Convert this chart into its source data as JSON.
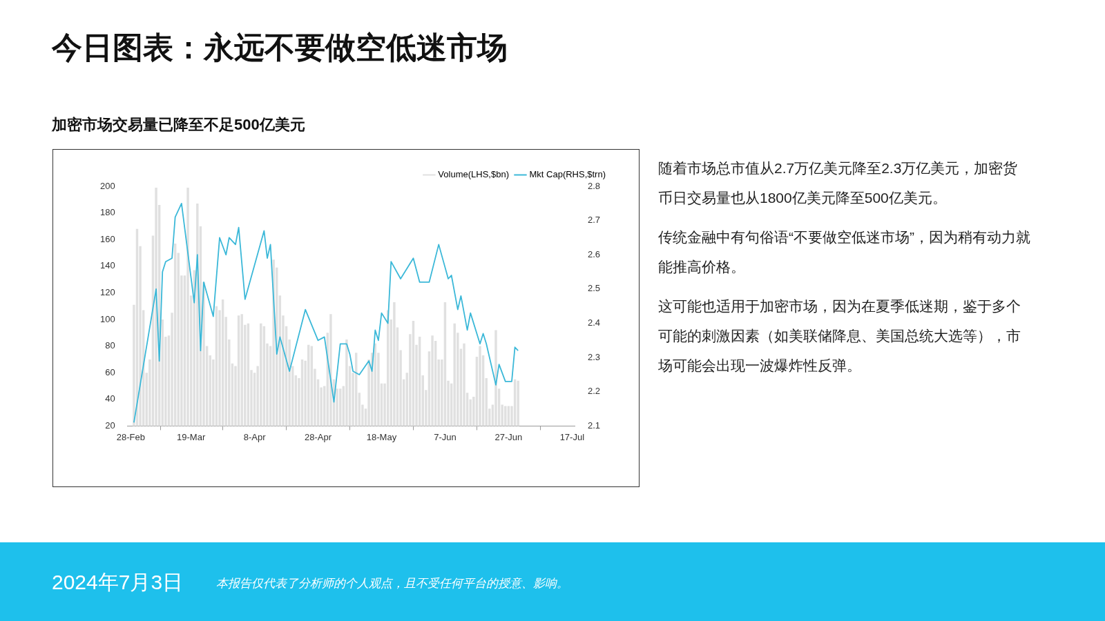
{
  "chart_data": {
    "type": "bar",
    "title": "今日图表：永远不要做空低迷市场",
    "subtitle": "加密市场交易量已降至不足500亿美元",
    "series": [
      {
        "name": "Volume(LHS,$bn)",
        "color": "#e0e0e0",
        "x": [
          "--03-01",
          "--03-02",
          "--03-03",
          "--03-04",
          "--03-05",
          "--03-06",
          "--03-07",
          "--03-08",
          "--03-09",
          "--03-10",
          "--03-11",
          "--03-12",
          "--03-13",
          "--03-14",
          "--03-15",
          "--03-16",
          "--03-17",
          "--03-18",
          "--03-19",
          "--03-20",
          "--03-21",
          "--03-22",
          "--03-23",
          "--03-24",
          "--03-25",
          "--03-26",
          "--03-27",
          "--03-28",
          "--03-29",
          "--03-30",
          "--03-31",
          "--04-01",
          "--04-02",
          "--04-03",
          "--04-04",
          "--04-05",
          "--04-06",
          "--04-07",
          "--04-08",
          "--04-09",
          "--04-10",
          "--04-11",
          "--04-12",
          "--04-13",
          "--04-14",
          "--04-15",
          "--04-16",
          "--04-17",
          "--04-18",
          "--04-19",
          "--04-20",
          "--04-21",
          "--04-22",
          "--04-23",
          "--04-24",
          "--04-25",
          "--04-26",
          "--04-27",
          "--04-28",
          "--04-29",
          "--04-30",
          "--05-01",
          "--05-02",
          "--05-03",
          "--05-04",
          "--05-05",
          "--05-06",
          "--05-07",
          "--05-08",
          "--05-09",
          "--05-10",
          "--05-11",
          "--05-12",
          "--05-13",
          "--05-14",
          "--05-15",
          "--05-16",
          "--05-17",
          "--05-18",
          "--05-19",
          "--05-20",
          "--05-21",
          "--05-22",
          "--05-23",
          "--05-24",
          "--05-25",
          "--05-26",
          "--05-27",
          "--05-28",
          "--05-29",
          "--05-30",
          "--05-31",
          "--06-01",
          "--06-02",
          "--06-03",
          "--06-04",
          "--06-05",
          "--06-06",
          "--06-07",
          "--06-08",
          "--06-09",
          "--06-10",
          "--06-11",
          "--06-12",
          "--06-13",
          "--06-14",
          "--06-15",
          "--06-16",
          "--06-17",
          "--06-18",
          "--06-19",
          "--06-20",
          "--06-21",
          "--06-22",
          "--06-23",
          "--06-24",
          "--06-25",
          "--06-26",
          "--06-27",
          "--06-28",
          "--06-29",
          "--06-30"
        ],
        "values": [
          111,
          168,
          155,
          107,
          60,
          70,
          163,
          199,
          186,
          100,
          87,
          88,
          105,
          157,
          150,
          133,
          133,
          199,
          118,
          137,
          187,
          170,
          128,
          80,
          73,
          70,
          110,
          107,
          115,
          102,
          85,
          67,
          65,
          103,
          104,
          96,
          97,
          62,
          60,
          65,
          97,
          95,
          82,
          80,
          145,
          139,
          118,
          103,
          95,
          85,
          65,
          58,
          56,
          70,
          69,
          81,
          80,
          63,
          55,
          49,
          50,
          90,
          104,
          55,
          48,
          48,
          50,
          85,
          65,
          60,
          75,
          45,
          36,
          33,
          70,
          75,
          82,
          75,
          52,
          52,
          107,
          100,
          113,
          94,
          77,
          55,
          60,
          89,
          99,
          81,
          87,
          58,
          47,
          76,
          88,
          84,
          70,
          70,
          113,
          54,
          52,
          97,
          90,
          78,
          82,
          45,
          40,
          42,
          72,
          80,
          73,
          56,
          33,
          36,
          92,
          48,
          36,
          35,
          35,
          35,
          55,
          54
        ]
      },
      {
        "name": "Mkt Cap(RHS,$trn)",
        "type": "line",
        "axis": "y2",
        "color": "#3bb8d8",
        "x": [
          "--03-01",
          "--03-08",
          "--03-09",
          "--03-10",
          "--03-11",
          "--03-13",
          "--03-14",
          "--03-16",
          "--03-20",
          "--03-21",
          "--03-22",
          "--03-23",
          "--03-26",
          "--03-28",
          "--03-30",
          "--03-31",
          "--04-02",
          "--04-03",
          "--04-05",
          "--04-11",
          "--04-12",
          "--04-13",
          "--04-15",
          "--04-16",
          "--04-19",
          "--04-24",
          "--04-28",
          "--04-30",
          "--05-03",
          "--05-05",
          "--05-07",
          "--05-08",
          "--05-09",
          "--05-11",
          "--05-14",
          "--05-15",
          "--05-16",
          "--05-17",
          "--05-18",
          "--05-20",
          "--05-21",
          "--05-24",
          "--05-28",
          "--05-30",
          "--06-02",
          "--06-05",
          "--06-08",
          "--06-09",
          "--06-11",
          "--06-12",
          "--06-14",
          "--06-15",
          "--06-18",
          "--06-19",
          "--06-20",
          "--06-23",
          "--06-24",
          "--06-26",
          "--06-28",
          "--06-29",
          "--06-30"
        ],
        "values": [
          2.11,
          2.5,
          2.29,
          2.55,
          2.58,
          2.59,
          2.71,
          2.75,
          2.46,
          2.6,
          2.32,
          2.52,
          2.42,
          2.65,
          2.6,
          2.65,
          2.63,
          2.68,
          2.47,
          2.67,
          2.59,
          2.63,
          2.31,
          2.36,
          2.26,
          2.44,
          2.35,
          2.36,
          2.17,
          2.34,
          2.34,
          2.31,
          2.26,
          2.25,
          2.29,
          2.26,
          2.38,
          2.35,
          2.43,
          2.4,
          2.58,
          2.53,
          2.59,
          2.52,
          2.52,
          2.63,
          2.53,
          2.54,
          2.44,
          2.48,
          2.38,
          2.43,
          2.34,
          2.37,
          2.34,
          2.22,
          2.28,
          2.23,
          2.23,
          2.33,
          2.32
        ]
      }
    ],
    "xlim": [
      "--02-27",
      "--07-18"
    ],
    "xticks": [
      {
        "value": "--02-28",
        "label": "28-Feb"
      },
      {
        "value": "--03-19",
        "label": "19-Mar"
      },
      {
        "value": "--04-08",
        "label": "8-Apr"
      },
      {
        "value": "--04-28",
        "label": "28-Apr"
      },
      {
        "value": "--05-18",
        "label": "18-May"
      },
      {
        "value": "--06-07",
        "label": "7-Jun"
      },
      {
        "value": "--06-27",
        "label": "27-Jun"
      },
      {
        "value": "--07-17",
        "label": "17-Jul"
      }
    ],
    "ylim": [
      20,
      200
    ],
    "yticks": [
      20,
      40,
      60,
      80,
      100,
      120,
      140,
      160,
      180,
      200
    ],
    "y2lim": [
      2.1,
      2.8
    ],
    "y2ticks": [
      2.1,
      2.2,
      2.3,
      2.4,
      2.5,
      2.6,
      2.7,
      2.8
    ],
    "grid": false,
    "legend": "top right",
    "marker": "none",
    "line_style": "solid",
    "annotations": [
      "随着市场总市值从2.7万亿美元降至2.3万亿美元，加密货币日交易量也从1800亿美元降至500亿美元。",
      "传统金融中有句俗语“不要做空低迷市场”，因为稍有动力就能推高价格。",
      "这可能也适用于加密市场，因为在夏季低迷期，鉴于多个可能的刺激因素（如美联储降息、美国总统大选等），市场可能会出现一波爆炸性反弹。",
      "2024年7月3日",
      "本报告仅代表了分析师的个人观点，且不受任何平台的授意、影响。"
    ]
  }
}
